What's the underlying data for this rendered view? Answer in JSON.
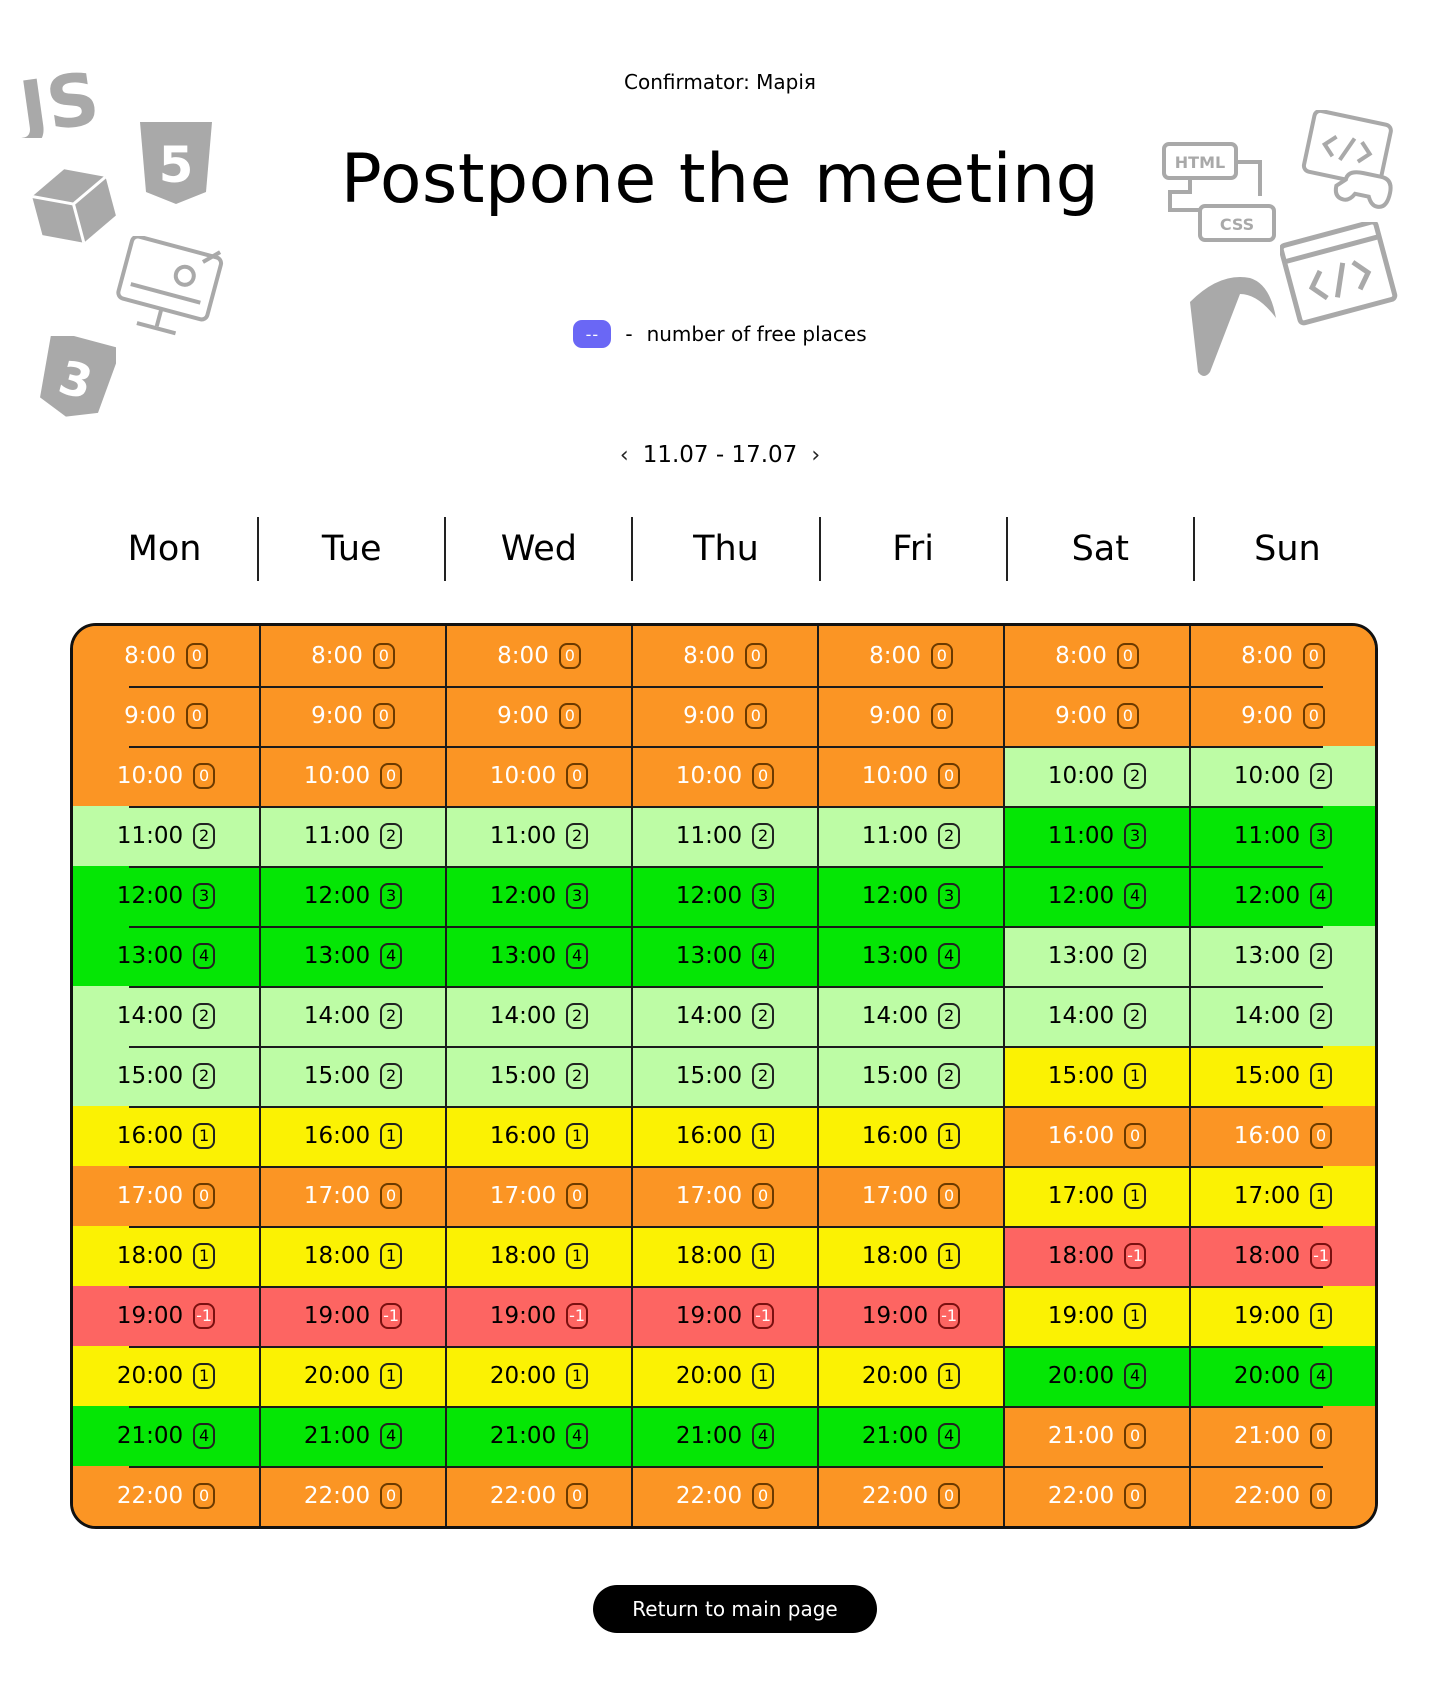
{
  "header": {
    "confirmator": "Confirmator: Марія",
    "title": "Postpone the meeting"
  },
  "legend": {
    "swatch": "--",
    "separator": "-",
    "text": "number of free places"
  },
  "week": {
    "range": "11.07 - 17.07",
    "prev_icon": "‹",
    "next_icon": "›"
  },
  "days": [
    "Mon",
    "Tue",
    "Wed",
    "Thu",
    "Fri",
    "Sat",
    "Sun"
  ],
  "colors": {
    "-1": "#fd6562",
    "0": "#fb9524",
    "1": "#fbf203",
    "2": "#bdfca5",
    "3": "#05e605",
    "4": "#05e605",
    "legend": "#6a67f5"
  },
  "schedule": [
    {
      "time": "8:00",
      "free": [
        "0",
        "0",
        "0",
        "0",
        "0",
        "0",
        "0"
      ]
    },
    {
      "time": "9:00",
      "free": [
        "0",
        "0",
        "0",
        "0",
        "0",
        "0",
        "0"
      ]
    },
    {
      "time": "10:00",
      "free": [
        "0",
        "0",
        "0",
        "0",
        "0",
        "2",
        "2"
      ]
    },
    {
      "time": "11:00",
      "free": [
        "2",
        "2",
        "2",
        "2",
        "2",
        "3",
        "3"
      ]
    },
    {
      "time": "12:00",
      "free": [
        "3",
        "3",
        "3",
        "3",
        "3",
        "4",
        "4"
      ]
    },
    {
      "time": "13:00",
      "free": [
        "4",
        "4",
        "4",
        "4",
        "4",
        "2",
        "2"
      ]
    },
    {
      "time": "14:00",
      "free": [
        "2",
        "2",
        "2",
        "2",
        "2",
        "2",
        "2"
      ]
    },
    {
      "time": "15:00",
      "free": [
        "2",
        "2",
        "2",
        "2",
        "2",
        "1",
        "1"
      ]
    },
    {
      "time": "16:00",
      "free": [
        "1",
        "1",
        "1",
        "1",
        "1",
        "0",
        "0"
      ]
    },
    {
      "time": "17:00",
      "free": [
        "0",
        "0",
        "0",
        "0",
        "0",
        "1",
        "1"
      ]
    },
    {
      "time": "18:00",
      "free": [
        "1",
        "1",
        "1",
        "1",
        "1",
        "-1",
        "-1"
      ]
    },
    {
      "time": "19:00",
      "free": [
        "-1",
        "-1",
        "-1",
        "-1",
        "-1",
        "1",
        "1"
      ]
    },
    {
      "time": "20:00",
      "free": [
        "1",
        "1",
        "1",
        "1",
        "1",
        "4",
        "4"
      ]
    },
    {
      "time": "21:00",
      "free": [
        "4",
        "4",
        "4",
        "4",
        "4",
        "0",
        "0"
      ]
    },
    {
      "time": "22:00",
      "free": [
        "0",
        "0",
        "0",
        "0",
        "0",
        "0",
        "0"
      ]
    }
  ],
  "footer": {
    "return_label": "Return to main page"
  },
  "decorations": [
    "js-icon",
    "html5-icon",
    "box-icon",
    "monitor-design-icon",
    "css3-icon",
    "html-css-icon",
    "code-gamepad-icon",
    "code-window-icon",
    "pickaxe-icon"
  ]
}
